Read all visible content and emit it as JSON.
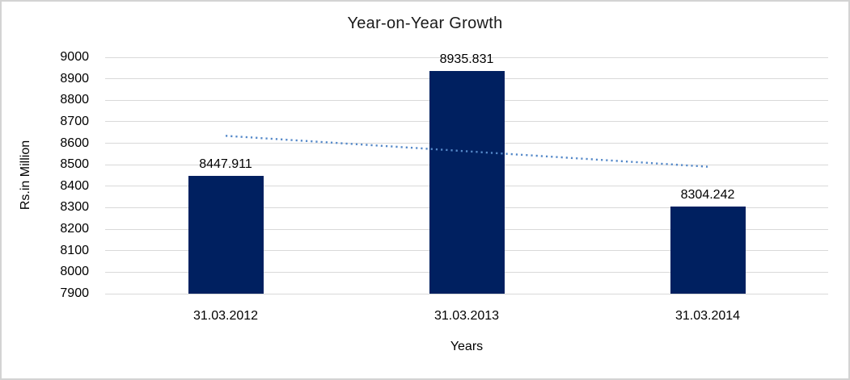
{
  "window": {
    "background_color": "#FFFFFF",
    "border_color": "#D3D3D3"
  },
  "chart_data": {
    "type": "bar",
    "title": "Year-on-Year Growth",
    "xlabel": "Years",
    "ylabel": "Rs.in Million",
    "categories": [
      "31.03.2012",
      "31.03.2013",
      "31.03.2014"
    ],
    "values": [
      8447.911,
      8935.831,
      8304.242
    ],
    "data_labels": [
      "8447.911",
      "8935.831",
      "8304.242"
    ],
    "ylim": [
      7900,
      9000
    ],
    "yticks": [
      9000,
      8900,
      8800,
      8700,
      8600,
      8500,
      8400,
      8300,
      8200,
      8100,
      8000,
      7900
    ],
    "grid": true,
    "legend": "none",
    "bar_color": "#002060",
    "gridline_color": "#D9D9D9",
    "trendline": {
      "type": "linear",
      "style": "dotted",
      "color": "#5589C9",
      "start_value": 8634.5,
      "end_value": 8490.8
    }
  }
}
